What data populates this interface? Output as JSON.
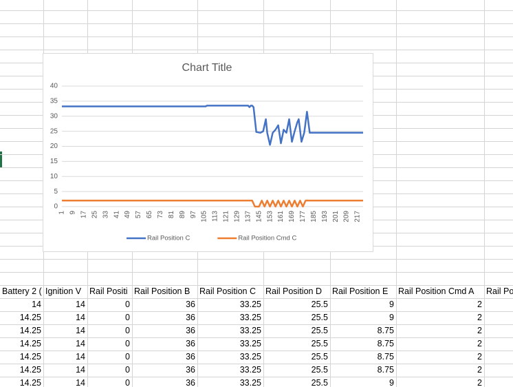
{
  "chart_data": {
    "type": "line",
    "title": "Chart Title",
    "xlim": [
      1,
      221
    ],
    "xticks": [
      1,
      9,
      17,
      25,
      33,
      41,
      49,
      57,
      65,
      73,
      81,
      89,
      97,
      105,
      113,
      121,
      129,
      137,
      145,
      153,
      161,
      169,
      177,
      185,
      193,
      201,
      209,
      217
    ],
    "ylim": [
      0,
      40
    ],
    "yticks": [
      0,
      5,
      10,
      15,
      20,
      25,
      30,
      35,
      40
    ],
    "grid": true,
    "legend": "bottom",
    "series": [
      {
        "name": "Rail Position C",
        "color": "#4472c4",
        "x": [
          1,
          106,
          107,
          137,
          138,
          139,
          140,
          141,
          143,
          146,
          148,
          150,
          151,
          153,
          155,
          157,
          159,
          161,
          163,
          165,
          167,
          169,
          171,
          173,
          174,
          176,
          178,
          180,
          182,
          221
        ],
        "values": [
          33.25,
          33.25,
          33.5,
          33.5,
          33,
          33.5,
          33.5,
          33,
          24.75,
          24.5,
          25,
          29,
          24.5,
          20.5,
          24.5,
          25.5,
          27,
          21,
          25.5,
          24.5,
          29,
          21.5,
          25,
          28,
          29,
          21.5,
          24.5,
          31.5,
          24.5,
          24.5
        ]
      },
      {
        "name": "Rail Position Cmd C",
        "color": "#ed7d31",
        "x": [
          1,
          140,
          142,
          145,
          147,
          149,
          151,
          153,
          155,
          157,
          159,
          161,
          163,
          165,
          167,
          169,
          171,
          173,
          175,
          177,
          179,
          181,
          221
        ],
        "values": [
          2,
          2,
          0,
          0,
          2,
          0,
          2,
          0,
          2,
          0,
          2,
          0,
          2,
          0,
          2,
          0,
          2,
          0,
          2,
          0,
          2,
          2,
          2
        ]
      }
    ]
  },
  "table": {
    "header": [
      "Battery 2 (",
      "Ignition V",
      "Rail Positi",
      "Rail Position B",
      "Rail Position C",
      "Rail Position D",
      "Rail Position E",
      "Rail Position Cmd A",
      "Rail Po"
    ],
    "rows": [
      [
        14,
        14,
        0,
        36,
        33.25,
        25.5,
        9,
        2
      ],
      [
        14.25,
        14,
        0,
        36,
        33.25,
        25.5,
        9,
        2
      ],
      [
        14.25,
        14,
        0,
        36,
        33.25,
        25.5,
        8.75,
        2
      ],
      [
        14.25,
        14,
        0,
        36,
        33.25,
        25.5,
        8.75,
        2
      ],
      [
        14.25,
        14,
        0,
        36,
        33.25,
        25.5,
        8.75,
        2
      ],
      [
        14.25,
        14,
        0,
        36,
        33.25,
        25.5,
        8.75,
        2
      ],
      [
        14.25,
        14,
        0,
        36,
        33.25,
        25.5,
        9,
        2
      ]
    ]
  }
}
